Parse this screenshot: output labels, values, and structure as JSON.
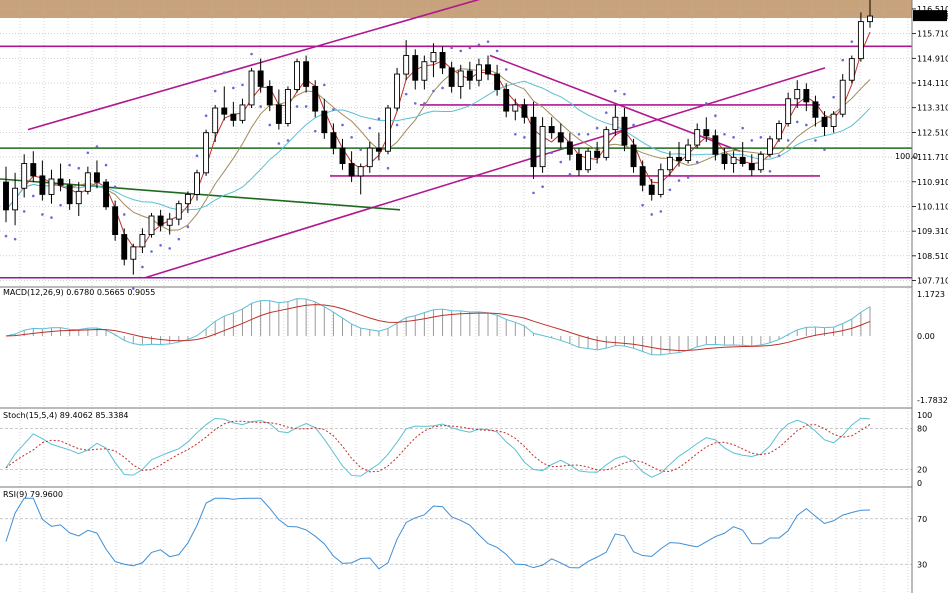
{
  "colors": {
    "background": "#ffffff",
    "grid": "#b8b8b8",
    "band": "#c8a27a",
    "candle": "#000000",
    "magenta": "#b0188f",
    "purple": "#8a1a9c",
    "green": "#1e6b1e",
    "sar": "#6a6ad8",
    "ma_fast": "#c0302a",
    "ma_mid": "#a08b5b",
    "ma_slow": "#5cc0d6",
    "macd_hist": "#9a9a9a",
    "macd_line": "#5cc0d6",
    "macd_signal": "#c0302a",
    "stoch_main": "#5cc0d6",
    "stoch_signal": "#c0302a",
    "rsi": "#3f8fd6"
  },
  "price_axis": {
    "ticks": [
      "116.510",
      "115.710",
      "114.910",
      "114.110",
      "113.310",
      "112.510",
      "111.710",
      "110.910",
      "110.110",
      "109.310",
      "108.510",
      "107.710"
    ],
    "current": "116.278",
    "level_label": "100.0"
  },
  "macd": {
    "label": "MACD(12,26,9) 0.6780 0.5665 0.9055",
    "ticks": [
      "1.1723",
      "0.00",
      "-1.7832"
    ]
  },
  "stoch": {
    "label": "Stoch(15,5,4) 89.4062 85.3384",
    "ticks": [
      "100",
      "80",
      "20",
      "0"
    ]
  },
  "rsi": {
    "label": "RSI(9) 79.9600",
    "ticks": [
      "70",
      "30"
    ]
  },
  "chart_data": {
    "type": "candlestick",
    "ylim": [
      107.5,
      116.8
    ],
    "candles": [
      [
        110.9,
        111.4,
        109.6,
        110.0
      ],
      [
        110.0,
        111.2,
        109.5,
        110.7
      ],
      [
        110.7,
        111.8,
        110.4,
        111.5
      ],
      [
        111.5,
        111.9,
        110.9,
        111.1
      ],
      [
        111.1,
        111.6,
        110.3,
        110.5
      ],
      [
        110.5,
        111.3,
        110.2,
        111.0
      ],
      [
        111.0,
        111.5,
        110.6,
        110.8
      ],
      [
        110.8,
        111.0,
        110.0,
        110.2
      ],
      [
        110.2,
        110.9,
        109.8,
        110.6
      ],
      [
        110.6,
        111.4,
        110.5,
        111.2
      ],
      [
        111.2,
        111.6,
        110.7,
        110.9
      ],
      [
        110.9,
        111.0,
        110.0,
        110.1
      ],
      [
        110.1,
        110.3,
        109.0,
        109.2
      ],
      [
        109.2,
        109.4,
        108.2,
        108.4
      ],
      [
        108.4,
        108.9,
        107.9,
        108.8
      ],
      [
        108.8,
        109.4,
        108.6,
        109.2
      ],
      [
        109.2,
        109.9,
        109.1,
        109.8
      ],
      [
        109.8,
        110.0,
        109.3,
        109.5
      ],
      [
        109.5,
        109.9,
        109.2,
        109.7
      ],
      [
        109.7,
        110.3,
        109.5,
        110.2
      ],
      [
        110.2,
        110.6,
        109.9,
        110.5
      ],
      [
        110.5,
        111.3,
        110.3,
        111.2
      ],
      [
        111.2,
        112.6,
        111.1,
        112.5
      ],
      [
        112.5,
        113.4,
        112.2,
        113.3
      ],
      [
        113.3,
        114.0,
        112.9,
        113.1
      ],
      [
        113.1,
        113.5,
        112.7,
        112.9
      ],
      [
        112.9,
        113.6,
        112.8,
        113.4
      ],
      [
        113.4,
        114.6,
        113.3,
        114.5
      ],
      [
        114.5,
        114.9,
        113.8,
        114.0
      ],
      [
        114.0,
        114.2,
        113.2,
        113.4
      ],
      [
        113.4,
        113.9,
        112.6,
        112.8
      ],
      [
        112.8,
        114.0,
        112.7,
        113.9
      ],
      [
        113.9,
        114.9,
        113.8,
        114.8
      ],
      [
        114.8,
        115.0,
        113.8,
        114.0
      ],
      [
        114.0,
        114.2,
        113.0,
        113.2
      ],
      [
        113.2,
        113.6,
        112.3,
        112.5
      ],
      [
        112.5,
        112.8,
        111.8,
        112.0
      ],
      [
        112.0,
        112.3,
        111.3,
        111.5
      ],
      [
        111.5,
        111.9,
        110.9,
        111.1
      ],
      [
        111.1,
        111.5,
        110.5,
        111.4
      ],
      [
        111.4,
        112.2,
        111.2,
        112.0
      ],
      [
        112.0,
        112.5,
        111.6,
        111.9
      ],
      [
        111.9,
        113.4,
        111.8,
        113.3
      ],
      [
        113.3,
        114.6,
        113.2,
        114.4
      ],
      [
        114.4,
        115.5,
        114.2,
        115.0
      ],
      [
        115.0,
        115.2,
        113.9,
        114.2
      ],
      [
        114.2,
        115.0,
        113.9,
        114.8
      ],
      [
        114.8,
        115.4,
        114.3,
        115.1
      ],
      [
        115.1,
        115.3,
        114.4,
        114.6
      ],
      [
        114.6,
        114.8,
        113.8,
        114.0
      ],
      [
        114.0,
        114.7,
        113.6,
        114.5
      ],
      [
        114.5,
        114.8,
        113.9,
        114.2
      ],
      [
        114.2,
        114.9,
        114.0,
        114.7
      ],
      [
        114.7,
        115.0,
        114.2,
        114.4
      ],
      [
        114.4,
        114.7,
        113.7,
        113.9
      ],
      [
        113.9,
        114.1,
        113.0,
        113.2
      ],
      [
        113.2,
        113.6,
        112.9,
        113.4
      ],
      [
        113.4,
        113.6,
        112.8,
        113.0
      ],
      [
        113.0,
        113.5,
        111.0,
        111.4
      ],
      [
        111.4,
        113.0,
        111.2,
        112.7
      ],
      [
        112.7,
        113.0,
        112.3,
        112.5
      ],
      [
        112.5,
        112.8,
        112.0,
        112.2
      ],
      [
        112.2,
        112.5,
        111.6,
        111.8
      ],
      [
        111.8,
        112.0,
        111.1,
        111.3
      ],
      [
        111.3,
        112.0,
        111.2,
        111.9
      ],
      [
        111.9,
        112.2,
        111.5,
        111.7
      ],
      [
        111.7,
        112.7,
        111.6,
        112.6
      ],
      [
        112.6,
        113.4,
        112.4,
        113.0
      ],
      [
        113.0,
        113.3,
        111.9,
        112.1
      ],
      [
        112.1,
        112.3,
        111.2,
        111.4
      ],
      [
        111.4,
        111.6,
        110.6,
        110.8
      ],
      [
        110.8,
        111.0,
        110.3,
        110.5
      ],
      [
        110.5,
        111.5,
        110.4,
        111.3
      ],
      [
        111.3,
        111.9,
        111.1,
        111.7
      ],
      [
        111.7,
        112.2,
        111.4,
        111.6
      ],
      [
        111.6,
        112.3,
        111.5,
        112.1
      ],
      [
        112.1,
        112.8,
        112.0,
        112.6
      ],
      [
        112.6,
        113.0,
        112.2,
        112.4
      ],
      [
        112.4,
        112.6,
        111.6,
        111.8
      ],
      [
        111.8,
        112.0,
        111.3,
        111.5
      ],
      [
        111.5,
        111.9,
        111.2,
        111.7
      ],
      [
        111.7,
        112.2,
        111.4,
        111.5
      ],
      [
        111.5,
        111.8,
        111.1,
        111.3
      ],
      [
        111.3,
        111.9,
        111.2,
        111.8
      ],
      [
        111.8,
        112.4,
        111.7,
        112.3
      ],
      [
        112.3,
        112.9,
        112.2,
        112.8
      ],
      [
        112.8,
        113.8,
        112.7,
        113.6
      ],
      [
        113.6,
        114.2,
        113.3,
        113.9
      ],
      [
        113.9,
        114.1,
        113.2,
        113.5
      ],
      [
        113.5,
        113.7,
        112.7,
        113.0
      ],
      [
        113.0,
        113.2,
        112.4,
        112.7
      ],
      [
        112.7,
        113.2,
        112.5,
        113.1
      ],
      [
        113.1,
        114.4,
        113.0,
        114.2
      ],
      [
        114.2,
        115.0,
        114.1,
        114.9
      ],
      [
        114.9,
        116.4,
        114.8,
        116.1
      ],
      [
        116.1,
        116.8,
        115.9,
        116.28
      ]
    ]
  }
}
